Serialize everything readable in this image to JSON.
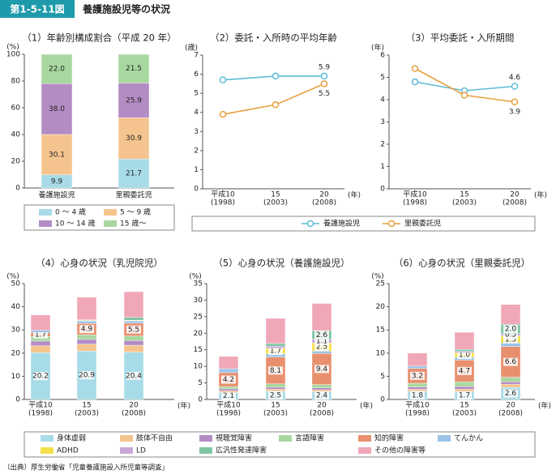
{
  "header": {
    "figure_number": "第1-5-11図",
    "title": "養護施設児等の状況"
  },
  "source": "（出典）厚生労働省「児童養護施設入所児童等調査」",
  "chart_data": [
    {
      "type": "stacked_bar",
      "title": "（1）年齢別構成割合（平成 20 年）",
      "y_unit": "(%)",
      "categories": [
        "養護施設児",
        "里親委託児"
      ],
      "ylim": [
        0,
        100
      ],
      "yticks": [
        0,
        20,
        40,
        60,
        80,
        100
      ],
      "series": [
        {
          "name": "0 ～ 4 歳",
          "color": "#a8dbe8",
          "values": [
            9.9,
            21.7
          ],
          "value_labels": [
            "9.9",
            "21.7"
          ]
        },
        {
          "name": "5 ～ 9 歳",
          "color": "#f5c48e",
          "values": [
            30.1,
            30.9
          ],
          "value_labels": [
            "30.1",
            "30.9"
          ]
        },
        {
          "name": "10 ～ 14 歳",
          "color": "#b48cc4",
          "values": [
            38,
            25.9
          ],
          "value_labels": [
            "38.0",
            "25.9"
          ]
        },
        {
          "name": "15 歳～",
          "color": "#a8d8a0",
          "values": [
            22,
            21.5
          ],
          "value_labels": [
            "22.0",
            "21.5"
          ]
        }
      ]
    },
    {
      "type": "line",
      "title": "（2）委託・入所時の平均年齢",
      "y_unit": "(歳)",
      "x_unit": "(年)",
      "categories": [
        "平成10",
        "15",
        "20"
      ],
      "category_years": [
        "(1998)",
        "(2003)",
        "(2008)"
      ],
      "ylim": [
        0,
        7
      ],
      "yticks": [
        0,
        1,
        2,
        3,
        4,
        5,
        6,
        7
      ],
      "series": [
        {
          "name": "養護施設児",
          "color": "#5bbcd6",
          "values": [
            5.7,
            5.9,
            5.9
          ],
          "value_labels": [
            null,
            null,
            "5.9"
          ]
        },
        {
          "name": "里親委託児",
          "color": "#e8a040",
          "values": [
            3.9,
            4.4,
            5.5
          ],
          "value_labels": [
            null,
            null,
            "5.5"
          ]
        }
      ]
    },
    {
      "type": "line",
      "title": "（3）平均委託・入所期間",
      "y_unit": "(年)",
      "x_unit": "(年)",
      "categories": [
        "平成10",
        "15",
        "20"
      ],
      "category_years": [
        "(1998)",
        "(2003)",
        "(2008)"
      ],
      "ylim": [
        0,
        6
      ],
      "yticks": [
        0,
        1,
        2,
        3,
        4,
        5,
        6
      ],
      "series": [
        {
          "color": "#5bbcd6",
          "values": [
            4.8,
            4.4,
            4.6
          ],
          "value_labels": [
            null,
            null,
            "4.6"
          ]
        },
        {
          "color": "#e8a040",
          "values": [
            5.4,
            4.2,
            3.9
          ],
          "value_labels": [
            null,
            null,
            "3.9"
          ]
        }
      ]
    },
    {
      "type": "stacked_bar",
      "title": "（4）心身の状況（乳児院児）",
      "y_unit": "(%)",
      "x_unit": "(年)",
      "categories": [
        "平成10",
        "15",
        "20"
      ],
      "category_years": [
        "(1998)",
        "(2003)",
        "(2008)"
      ],
      "ylim": [
        0,
        50
      ],
      "yticks": [
        0,
        10,
        20,
        30,
        40,
        50
      ],
      "series": [
        {
          "name": "身体虚弱",
          "color": "#a8dbe8",
          "values": [
            20.2,
            20.9,
            20.4
          ],
          "value_labels": [
            "20.2",
            "20.9",
            "20.4"
          ]
        },
        {
          "name": "肢体不自由",
          "color": "#f5c48e",
          "values": [
            3,
            3,
            3
          ]
        },
        {
          "name": "視聴覚障害",
          "color": "#b48cc4",
          "values": [
            2,
            2,
            2
          ]
        },
        {
          "name": "言語障害",
          "color": "#a8d8a0",
          "values": [
            2,
            2,
            2
          ]
        },
        {
          "name": "知的障害",
          "color": "#e8906e",
          "values": [
            1.7,
            4.9,
            5.5
          ],
          "value_labels": [
            "1.7",
            "4.9",
            "5.5"
          ]
        },
        {
          "name": "てんかん",
          "color": "#9cc3e8",
          "values": [
            1,
            1,
            1
          ]
        },
        {
          "name": "ADHD",
          "color": "#f5e04a",
          "values": [
            null,
            0.2,
            0.2
          ]
        },
        {
          "name": "LD",
          "color": "#c9a8d8",
          "values": [
            null,
            0.1,
            0.1
          ]
        },
        {
          "name": "広汎性発達障害",
          "color": "#7fc6a4",
          "values": [
            null,
            0.3,
            1.2
          ]
        },
        {
          "name": "その他の障害等",
          "color": "#f0a8b8",
          "values": [
            6.6,
            9.7,
            11.1
          ]
        }
      ]
    },
    {
      "type": "stacked_bar",
      "title": "（5）心身の状況（養護施設児）",
      "y_unit": "(%)",
      "x_unit": "(年)",
      "categories": [
        "平成10",
        "15",
        "20"
      ],
      "category_years": [
        "(1998)",
        "(2003)",
        "(2008)"
      ],
      "ylim": [
        0,
        35
      ],
      "yticks": [
        0,
        5,
        10,
        15,
        20,
        25,
        30,
        35
      ],
      "series": [
        {
          "color": "#a8dbe8",
          "values": [
            2.1,
            2.5,
            2.4
          ],
          "value_labels": [
            "2.1",
            "2.5",
            "2.4"
          ]
        },
        {
          "color": "#f5c48e",
          "values": [
            0.5,
            0.6,
            0.5
          ]
        },
        {
          "color": "#b48cc4",
          "values": [
            0.6,
            0.6,
            0.6
          ]
        },
        {
          "color": "#a8d8a0",
          "values": [
            0.7,
            1,
            1
          ]
        },
        {
          "color": "#e8906e",
          "values": [
            4.2,
            8.1,
            9.4
          ],
          "value_labels": [
            "4.2",
            "8.1",
            "9.4"
          ]
        },
        {
          "color": "#9cc3e8",
          "values": [
            1.2,
            1,
            0.7
          ]
        },
        {
          "color": "#f5e04a",
          "values": [
            null,
            1.7,
            2.5
          ],
          "value_labels": [
            null,
            "1.7",
            "2.5"
          ]
        },
        {
          "color": "#c9a8d8",
          "values": [
            null,
            0.6,
            1.1
          ],
          "value_labels": [
            null,
            null,
            "1.1"
          ]
        },
        {
          "color": "#7fc6a4",
          "values": [
            null,
            0.8,
            2.6
          ],
          "value_labels": [
            null,
            null,
            "2.6"
          ]
        },
        {
          "color": "#f0a8b8",
          "values": [
            3.7,
            7.6,
            8.2
          ]
        }
      ]
    },
    {
      "type": "stacked_bar",
      "title": "（6）心身の状況（里親委託児）",
      "y_unit": "(%)",
      "x_unit": "(年)",
      "categories": [
        "平成10",
        "15",
        "20"
      ],
      "category_years": [
        "(1998)",
        "(2003)",
        "(2008)"
      ],
      "ylim": [
        0,
        25
      ],
      "yticks": [
        0,
        5,
        10,
        15,
        20,
        25
      ],
      "series": [
        {
          "color": "#a8dbe8",
          "values": [
            1.8,
            1.7,
            2.6
          ],
          "value_labels": [
            "1.8",
            "1.7",
            "2.6"
          ]
        },
        {
          "color": "#f5c48e",
          "values": [
            0.4,
            0.5,
            0.7
          ]
        },
        {
          "color": "#b48cc4",
          "values": [
            0.5,
            0.6,
            0.5
          ]
        },
        {
          "color": "#a8d8a0",
          "values": [
            0.8,
            1,
            1
          ]
        },
        {
          "color": "#e8906e",
          "values": [
            3.2,
            4.7,
            6.6
          ],
          "value_labels": [
            "3.2",
            "4.7",
            "6.6"
          ]
        },
        {
          "color": "#9cc3e8",
          "values": [
            0.5,
            0.6,
            0.8
          ]
        },
        {
          "color": "#f5e04a",
          "values": [
            null,
            1,
            1.5
          ],
          "value_labels": [
            null,
            "1.0",
            "1.5"
          ]
        },
        {
          "color": "#c9a8d8",
          "values": [
            null,
            0.3,
            0.5
          ],
          "value_labels": [
            null,
            null,
            "0.5"
          ]
        },
        {
          "color": "#7fc6a4",
          "values": [
            null,
            0.4,
            2
          ],
          "value_labels": [
            null,
            null,
            "2.0"
          ]
        },
        {
          "color": "#f0a8b8",
          "values": [
            2.8,
            3.7,
            4.3
          ]
        }
      ]
    }
  ]
}
